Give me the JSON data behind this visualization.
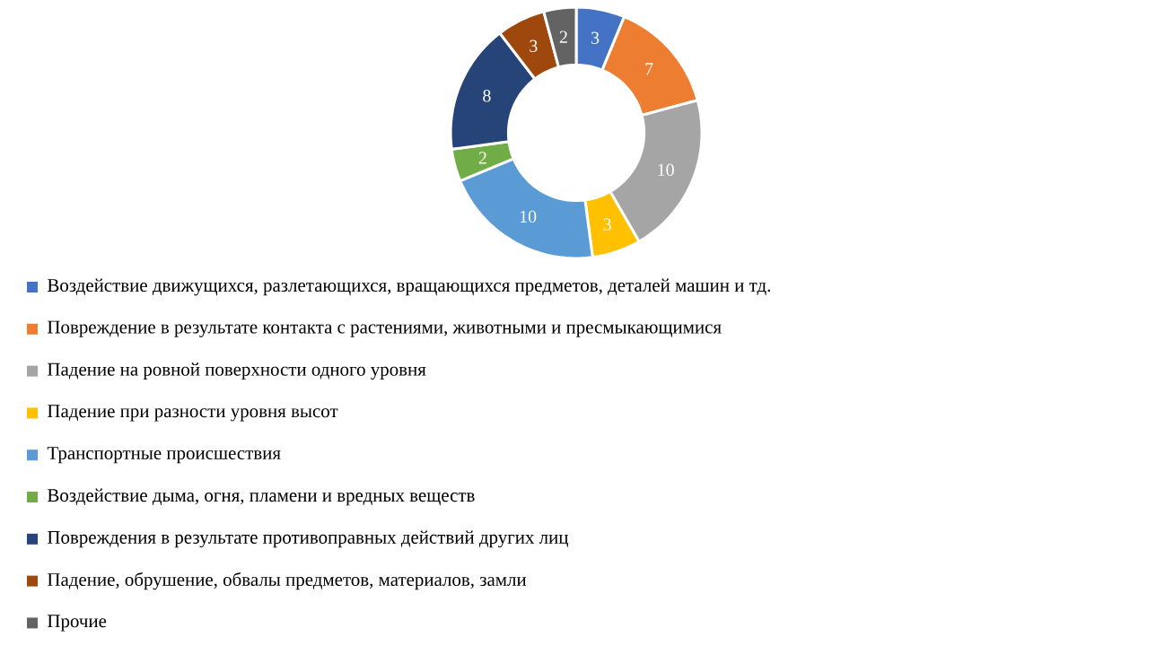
{
  "chart_data": {
    "type": "donut",
    "categories": [
      "Воздействие движущихся, разлетающихся, вращающихся предметов, деталей машин и тд.",
      "Повреждение в результате контакта с растениями, животными и пресмыкающимися",
      "Падение на ровной поверхности одного уровня",
      "Падение при разности уровня высот",
      "Транспортные происшествия",
      "Воздействие дыма, огня, пламени и вредных веществ",
      "Повреждения в результате противоправных действий других лиц",
      "Падение, обрушение, обвалы предметов, материалов, замли",
      "Прочие"
    ],
    "values": [
      3,
      7,
      10,
      3,
      10,
      2,
      8,
      3,
      2
    ],
    "colors": [
      "#4472c4",
      "#ed7d31",
      "#a5a5a5",
      "#ffc000",
      "#5b9bd5",
      "#70ad47",
      "#264478",
      "#9e480e",
      "#636363"
    ],
    "data_labels": true,
    "legend": "bottom"
  }
}
